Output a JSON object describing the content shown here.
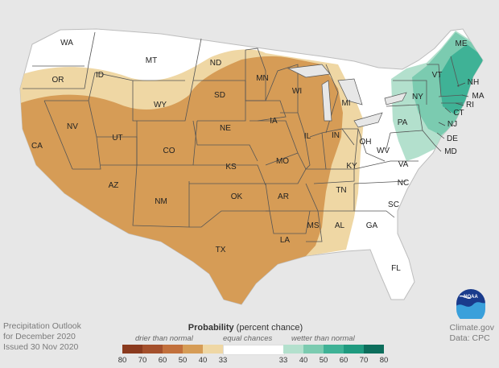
{
  "caption": {
    "line1": "Precipitation Outlook",
    "line2": "for December 2020",
    "line3": "Issued 30 Nov 2020"
  },
  "credit": {
    "line1": "Climate.gov",
    "line2": "Data: CPC"
  },
  "logo": {
    "text": "NOAA",
    "icon": "noaa-logo"
  },
  "legend": {
    "title_bold": "Probability",
    "title_rest": " (percent chance)",
    "drier_label": "drier than normal",
    "equal_label": "equal chances",
    "wetter_label": "wetter than normal",
    "dry_ticks": [
      "80",
      "70",
      "60",
      "50",
      "40",
      "33"
    ],
    "wet_ticks": [
      "33",
      "40",
      "50",
      "60",
      "70",
      "80"
    ],
    "dry_colors": [
      "#8a3a1e",
      "#a4502c",
      "#c2703c",
      "#d69c56",
      "#efd7a4"
    ],
    "equal_color": "#ffffff",
    "wet_colors": [
      "#b3e0cd",
      "#7bcbb0",
      "#3fb296",
      "#1f9a7f",
      "#0d6e5c"
    ]
  },
  "colors": {
    "outside": "#e7e7e7",
    "land": "#ffffff",
    "dry_40_50": "#d69c56",
    "dry_33_40": "#efd7a4",
    "wet_33_40": "#b3e0cd",
    "wet_40_50": "#7bcbb0",
    "wet_50_60": "#3fb296",
    "borders": "#555555"
  },
  "states": [
    "WA",
    "OR",
    "CA",
    "ID",
    "NV",
    "MT",
    "WY",
    "UT",
    "AZ",
    "CO",
    "NM",
    "ND",
    "SD",
    "NE",
    "KS",
    "OK",
    "TX",
    "MN",
    "IA",
    "MO",
    "AR",
    "LA",
    "WI",
    "IL",
    "MS",
    "MI",
    "IN",
    "KY",
    "TN",
    "AL",
    "OH",
    "GA",
    "FL",
    "SC",
    "NC",
    "VA",
    "WV",
    "PA",
    "NY",
    "VT",
    "NH",
    "ME",
    "MA",
    "CT",
    "RI",
    "NJ",
    "DE",
    "MD"
  ]
}
